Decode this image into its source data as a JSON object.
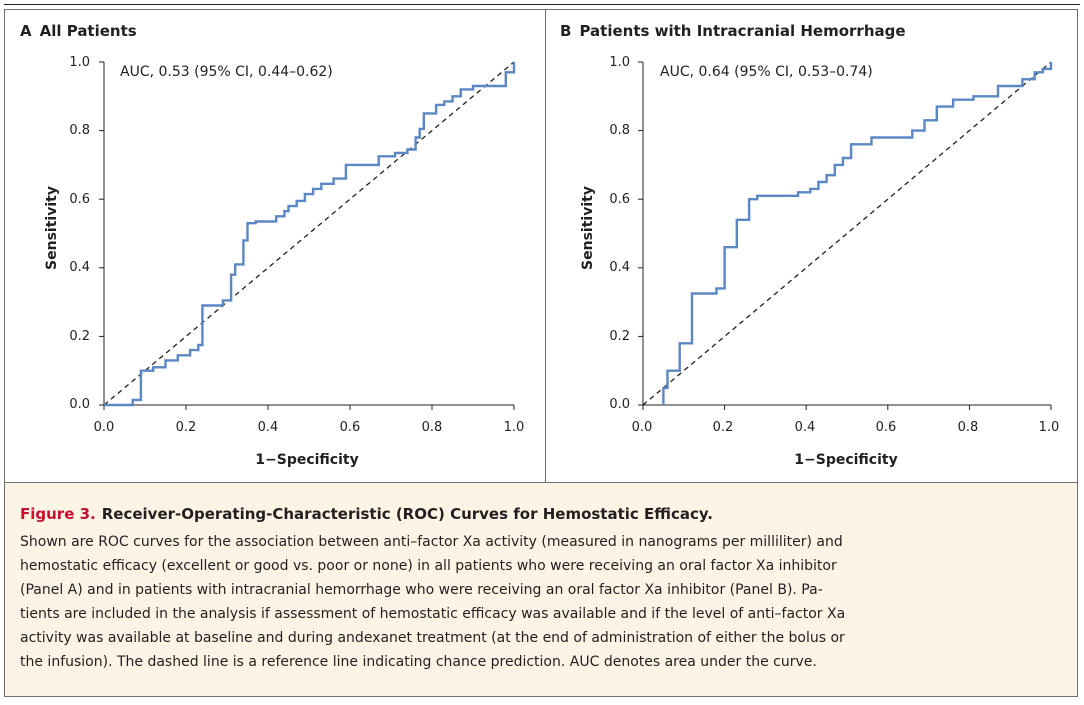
{
  "chart_data": [
    {
      "type": "line",
      "panel_letter": "A",
      "title": "All Patients",
      "annotation": "AUC, 0.53 (95% CI, 0.44–0.62)",
      "xlabel": "1−Specificity",
      "ylabel": "Sensitivity",
      "xlim": [
        0,
        1
      ],
      "ylim": [
        0,
        1
      ],
      "xticks": [
        "0.0",
        "0.2",
        "0.4",
        "0.6",
        "0.8",
        "1.0"
      ],
      "yticks": [
        "0.0",
        "0.2",
        "0.4",
        "0.6",
        "0.8",
        "1.0"
      ],
      "grid": false,
      "reference_line": {
        "style": "dashed",
        "x": [
          0,
          1
        ],
        "y": [
          0,
          1
        ]
      },
      "series": [
        {
          "color": "#5b87c5",
          "x": [
            0.0,
            0.07,
            0.07,
            0.09,
            0.09,
            0.12,
            0.12,
            0.15,
            0.15,
            0.18,
            0.18,
            0.21,
            0.21,
            0.23,
            0.23,
            0.24,
            0.24,
            0.29,
            0.29,
            0.31,
            0.31,
            0.32,
            0.32,
            0.34,
            0.34,
            0.35,
            0.35,
            0.37,
            0.37,
            0.42,
            0.42,
            0.44,
            0.44,
            0.45,
            0.45,
            0.47,
            0.47,
            0.49,
            0.49,
            0.51,
            0.51,
            0.53,
            0.53,
            0.56,
            0.56,
            0.59,
            0.59,
            0.67,
            0.67,
            0.71,
            0.71,
            0.74,
            0.74,
            0.76,
            0.76,
            0.77,
            0.77,
            0.78,
            0.78,
            0.81,
            0.81,
            0.83,
            0.83,
            0.85,
            0.85,
            0.87,
            0.87,
            0.9,
            0.9,
            0.98,
            0.98,
            1.0,
            1.0
          ],
          "y": [
            0.0,
            0.0,
            0.015,
            0.015,
            0.1,
            0.1,
            0.11,
            0.11,
            0.13,
            0.13,
            0.145,
            0.145,
            0.16,
            0.16,
            0.175,
            0.175,
            0.29,
            0.29,
            0.305,
            0.305,
            0.38,
            0.38,
            0.41,
            0.41,
            0.48,
            0.48,
            0.53,
            0.53,
            0.535,
            0.535,
            0.55,
            0.55,
            0.565,
            0.565,
            0.58,
            0.58,
            0.595,
            0.595,
            0.615,
            0.615,
            0.63,
            0.63,
            0.645,
            0.645,
            0.66,
            0.66,
            0.7,
            0.7,
            0.725,
            0.725,
            0.735,
            0.735,
            0.745,
            0.745,
            0.78,
            0.78,
            0.805,
            0.805,
            0.85,
            0.85,
            0.875,
            0.875,
            0.885,
            0.885,
            0.9,
            0.9,
            0.92,
            0.92,
            0.93,
            0.93,
            0.97,
            0.97,
            1.0
          ]
        }
      ]
    },
    {
      "type": "line",
      "panel_letter": "B",
      "title": "Patients with Intracranial Hemorrhage",
      "annotation": "AUC, 0.64 (95% CI, 0.53–0.74)",
      "xlabel": "1−Specificity",
      "ylabel": "Sensitivity",
      "xlim": [
        0,
        1
      ],
      "ylim": [
        0,
        1
      ],
      "xticks": [
        "0.0",
        "0.2",
        "0.4",
        "0.6",
        "0.8",
        "1.0"
      ],
      "yticks": [
        "0.0",
        "0.2",
        "0.4",
        "0.6",
        "0.8",
        "1.0"
      ],
      "grid": false,
      "reference_line": {
        "style": "dashed",
        "x": [
          0,
          1
        ],
        "y": [
          0,
          1
        ]
      },
      "series": [
        {
          "color": "#5b87c5",
          "x": [
            0.05,
            0.05,
            0.06,
            0.06,
            0.09,
            0.09,
            0.12,
            0.12,
            0.18,
            0.18,
            0.2,
            0.2,
            0.23,
            0.23,
            0.26,
            0.26,
            0.28,
            0.28,
            0.38,
            0.38,
            0.41,
            0.41,
            0.43,
            0.43,
            0.45,
            0.45,
            0.47,
            0.47,
            0.49,
            0.49,
            0.51,
            0.51,
            0.56,
            0.56,
            0.66,
            0.66,
            0.69,
            0.69,
            0.72,
            0.72,
            0.76,
            0.76,
            0.81,
            0.81,
            0.87,
            0.87,
            0.93,
            0.93,
            0.96,
            0.96,
            0.98,
            0.98,
            1.0,
            1.0
          ],
          "y": [
            0.0,
            0.05,
            0.05,
            0.1,
            0.1,
            0.18,
            0.18,
            0.325,
            0.325,
            0.34,
            0.34,
            0.46,
            0.46,
            0.54,
            0.54,
            0.6,
            0.6,
            0.61,
            0.61,
            0.62,
            0.62,
            0.63,
            0.63,
            0.65,
            0.65,
            0.67,
            0.67,
            0.7,
            0.7,
            0.72,
            0.72,
            0.76,
            0.76,
            0.78,
            0.78,
            0.8,
            0.8,
            0.83,
            0.83,
            0.87,
            0.87,
            0.89,
            0.89,
            0.9,
            0.9,
            0.93,
            0.93,
            0.95,
            0.95,
            0.97,
            0.97,
            0.98,
            0.98,
            1.0
          ]
        }
      ]
    }
  ],
  "caption": {
    "figure_number": "Figure 3.",
    "title": "Receiver-Operating-Characteristic (ROC) Curves for Hemostatic Efficacy.",
    "lines": [
      "Shown are ROC curves for the association between anti–factor Xa activity (measured in nanograms per milliliter) and",
      "hemostatic efficacy (excellent or good vs. poor or none) in all patients who were receiving an oral factor Xa inhibitor",
      "(Panel A) and in patients with intracranial hemorrhage who were receiving an oral factor Xa inhibitor (Panel B). Pa-",
      "tients are included in the analysis if assessment of hemostatic efficacy was available and if the level of anti–factor Xa",
      "activity was available at baseline and during andexanet treatment (at the end of administration of either the bolus or",
      "the infusion). The dashed line is a reference line indicating chance prediction. AUC denotes area under the curve."
    ]
  }
}
